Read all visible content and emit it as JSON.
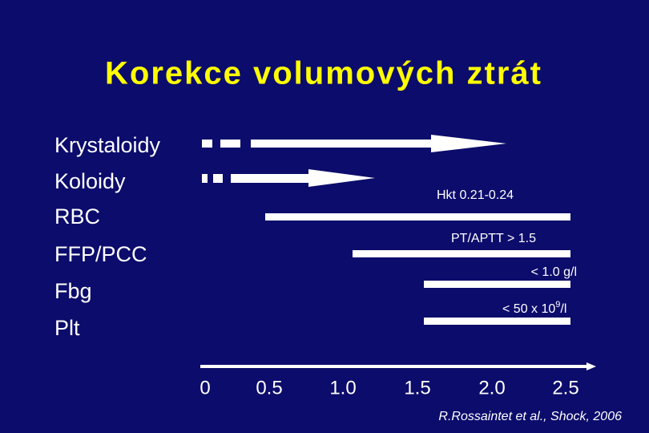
{
  "title": "Korekce volumových ztrát",
  "rows": [
    "Krystaloidy",
    "Koloidy",
    "RBC",
    "FFP/PCC",
    "Fbg",
    "Plt"
  ],
  "annotations": {
    "rbc": "Hkt 0.21-0.24",
    "ffp": "PT/APTT > 1.5",
    "fbg": "< 1.0 g/l",
    "plt": {
      "before": "< 50 x 10",
      "sup": "9",
      "after": "/l"
    }
  },
  "axis_labels": [
    "0",
    "0.5",
    "1.0",
    "1.5",
    "2.0",
    "2.5"
  ],
  "citation": "R.Rossaintet et al., Shock, 2006"
}
